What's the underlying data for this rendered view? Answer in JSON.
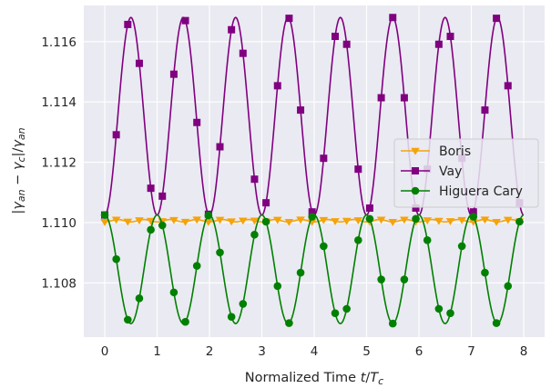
{
  "chart_data": {
    "type": "line",
    "title": "",
    "xlabel": "Normalized Time t/Tᶜ",
    "ylabel": "|γₐₙ − γc|/γₐₙ",
    "xlim": [
      -0.4,
      8.4
    ],
    "ylim": [
      1.1062,
      1.1172
    ],
    "x_ticks": [
      0,
      1,
      2,
      3,
      4,
      5,
      6,
      7,
      8
    ],
    "y_ticks": [
      1.108,
      1.11,
      1.112,
      1.114,
      1.116
    ],
    "y_tick_labels": [
      "1.108",
      "1.110",
      "1.112",
      "1.114",
      "1.116"
    ],
    "grid": true,
    "legend_position": "center-right",
    "series": [
      {
        "name": "Boris",
        "color": "#f5a30a",
        "marker": "triangle-down",
        "model": {
          "baseline": 1.11002,
          "amplitude": 8e-05,
          "period": 0.5
        },
        "marker_x": [
          0.0,
          0.22,
          0.44,
          0.66,
          0.88,
          1.1,
          1.32,
          1.54,
          1.76,
          1.98,
          2.2,
          2.42,
          2.64,
          2.86,
          3.08,
          3.3,
          3.52,
          3.74,
          3.96,
          4.18,
          4.4,
          4.62,
          4.84,
          5.06,
          5.28,
          5.5,
          5.72,
          5.94,
          6.16,
          6.38,
          6.6,
          6.82,
          7.04,
          7.26,
          7.48,
          7.7,
          7.92
        ]
      },
      {
        "name": "Vay",
        "color": "#800080",
        "marker": "square",
        "model": {
          "baseline": 1.11025,
          "amplitude": 0.00655,
          "period": 1.0
        },
        "marker_x": [
          0.0,
          0.22,
          0.44,
          0.66,
          0.88,
          1.1,
          1.32,
          1.54,
          1.76,
          1.98,
          2.2,
          2.42,
          2.64,
          2.86,
          3.08,
          3.3,
          3.52,
          3.74,
          3.96,
          4.18,
          4.4,
          4.62,
          4.84,
          5.06,
          5.28,
          5.5,
          5.72,
          5.94,
          6.16,
          6.38,
          6.6,
          6.82,
          7.04,
          7.26,
          7.48,
          7.7,
          7.92
        ]
      },
      {
        "name": "Higuera Cary",
        "color": "#008000",
        "marker": "circle",
        "model": {
          "baseline": 1.11025,
          "amplitude": 0.0036,
          "period": 1.0
        },
        "marker_x": [
          0.0,
          0.22,
          0.44,
          0.66,
          0.88,
          1.1,
          1.32,
          1.54,
          1.76,
          1.98,
          2.2,
          2.42,
          2.64,
          2.86,
          3.08,
          3.3,
          3.52,
          3.74,
          3.96,
          4.18,
          4.4,
          4.62,
          4.84,
          5.06,
          5.28,
          5.5,
          5.72,
          5.94,
          6.16,
          6.38,
          6.6,
          6.82,
          7.04,
          7.26,
          7.48,
          7.7,
          7.92
        ]
      }
    ]
  },
  "style": {
    "plot_background": "#eaeaf2",
    "grid_color": "#ffffff",
    "text_color": "#262626"
  }
}
